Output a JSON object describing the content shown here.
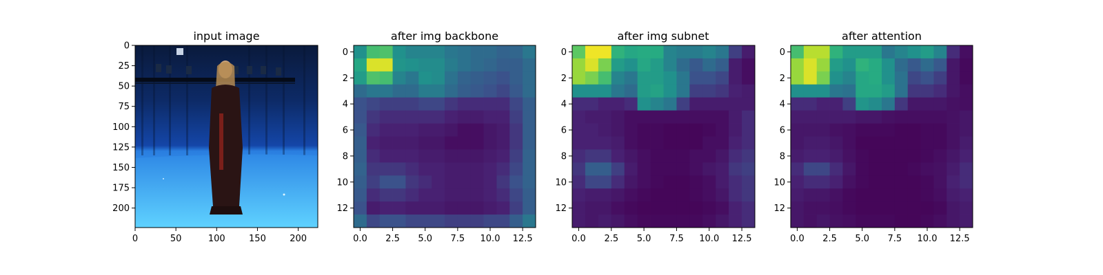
{
  "chart_data": [
    {
      "type": "image",
      "title": "input image",
      "xlim": [
        0,
        224
      ],
      "ylim": [
        224,
        0
      ],
      "xticks": [
        0,
        50,
        100,
        150,
        200
      ],
      "yticks": [
        0,
        25,
        50,
        75,
        100,
        125,
        150,
        175,
        200
      ],
      "xtick_labels": [
        "0",
        "50",
        "100",
        "150",
        "200"
      ],
      "ytick_labels": [
        "0",
        "25",
        "50",
        "75",
        "100",
        "125",
        "150",
        "175",
        "200"
      ]
    },
    {
      "type": "heatmap",
      "title": "after img backbone",
      "colormap": "viridis",
      "xlim": [
        -0.5,
        13.5
      ],
      "ylim": [
        13.5,
        -0.5
      ],
      "xticks": [
        0,
        2.5,
        5,
        7.5,
        10,
        12.5
      ],
      "yticks": [
        0,
        2,
        4,
        6,
        8,
        10,
        12
      ],
      "xtick_labels": [
        "0.0",
        "2.5",
        "5.0",
        "7.5",
        "10.0",
        "12.5"
      ],
      "ytick_labels": [
        "0",
        "2",
        "4",
        "6",
        "8",
        "10",
        "12"
      ],
      "values": [
        [
          0.5,
          0.7,
          0.72,
          0.5,
          0.45,
          0.45,
          0.45,
          0.4,
          0.38,
          0.35,
          0.35,
          0.32,
          0.33,
          0.4
        ],
        [
          0.6,
          0.95,
          0.95,
          0.52,
          0.5,
          0.48,
          0.48,
          0.42,
          0.38,
          0.35,
          0.33,
          0.3,
          0.3,
          0.35
        ],
        [
          0.55,
          0.72,
          0.7,
          0.45,
          0.4,
          0.5,
          0.48,
          0.38,
          0.32,
          0.3,
          0.28,
          0.25,
          0.3,
          0.35
        ],
        [
          0.35,
          0.4,
          0.4,
          0.35,
          0.35,
          0.42,
          0.42,
          0.35,
          0.3,
          0.28,
          0.25,
          0.22,
          0.28,
          0.35
        ],
        [
          0.25,
          0.22,
          0.2,
          0.2,
          0.2,
          0.22,
          0.22,
          0.18,
          0.15,
          0.15,
          0.15,
          0.15,
          0.22,
          0.3
        ],
        [
          0.25,
          0.18,
          0.15,
          0.15,
          0.15,
          0.15,
          0.15,
          0.12,
          0.1,
          0.1,
          0.12,
          0.12,
          0.2,
          0.3
        ],
        [
          0.28,
          0.15,
          0.12,
          0.12,
          0.12,
          0.1,
          0.1,
          0.08,
          0.05,
          0.05,
          0.08,
          0.1,
          0.18,
          0.3
        ],
        [
          0.3,
          0.12,
          0.1,
          0.1,
          0.1,
          0.08,
          0.08,
          0.05,
          0.05,
          0.05,
          0.08,
          0.1,
          0.18,
          0.3
        ],
        [
          0.3,
          0.15,
          0.12,
          0.12,
          0.12,
          0.1,
          0.1,
          0.08,
          0.08,
          0.08,
          0.1,
          0.12,
          0.2,
          0.32
        ],
        [
          0.32,
          0.18,
          0.18,
          0.18,
          0.15,
          0.12,
          0.12,
          0.1,
          0.1,
          0.1,
          0.12,
          0.15,
          0.22,
          0.32
        ],
        [
          0.3,
          0.2,
          0.25,
          0.25,
          0.18,
          0.15,
          0.12,
          0.1,
          0.1,
          0.1,
          0.12,
          0.18,
          0.25,
          0.32
        ],
        [
          0.28,
          0.15,
          0.18,
          0.18,
          0.15,
          0.12,
          0.12,
          0.1,
          0.1,
          0.1,
          0.12,
          0.15,
          0.22,
          0.3
        ],
        [
          0.25,
          0.1,
          0.12,
          0.12,
          0.1,
          0.1,
          0.1,
          0.08,
          0.08,
          0.08,
          0.1,
          0.12,
          0.2,
          0.3
        ],
        [
          0.35,
          0.22,
          0.25,
          0.25,
          0.22,
          0.22,
          0.22,
          0.2,
          0.2,
          0.2,
          0.22,
          0.22,
          0.3,
          0.4
        ]
      ]
    },
    {
      "type": "heatmap",
      "title": "after img subnet",
      "colormap": "viridis",
      "xlim": [
        -0.5,
        13.5
      ],
      "ylim": [
        13.5,
        -0.5
      ],
      "xticks": [
        0,
        2.5,
        5,
        7.5,
        10,
        12.5
      ],
      "yticks": [
        0,
        2,
        4,
        6,
        8,
        10,
        12
      ],
      "xtick_labels": [
        "0.0",
        "2.5",
        "5.0",
        "7.5",
        "10.0",
        "12.5"
      ],
      "ytick_labels": [
        "0",
        "2",
        "4",
        "6",
        "8",
        "10",
        "12"
      ],
      "values": [
        [
          0.75,
          0.98,
          0.98,
          0.65,
          0.6,
          0.62,
          0.62,
          0.45,
          0.42,
          0.42,
          0.45,
          0.4,
          0.2,
          0.1
        ],
        [
          0.85,
          0.95,
          0.8,
          0.55,
          0.5,
          0.6,
          0.55,
          0.45,
          0.35,
          0.28,
          0.35,
          0.3,
          0.1,
          0.05
        ],
        [
          0.85,
          0.8,
          0.7,
          0.45,
          0.4,
          0.55,
          0.55,
          0.5,
          0.4,
          0.25,
          0.25,
          0.22,
          0.1,
          0.05
        ],
        [
          0.5,
          0.5,
          0.5,
          0.4,
          0.35,
          0.55,
          0.58,
          0.5,
          0.4,
          0.2,
          0.2,
          0.18,
          0.12,
          0.1
        ],
        [
          0.15,
          0.15,
          0.12,
          0.12,
          0.15,
          0.5,
          0.45,
          0.4,
          0.2,
          0.1,
          0.1,
          0.1,
          0.1,
          0.1
        ],
        [
          0.12,
          0.1,
          0.1,
          0.08,
          0.05,
          0.05,
          0.05,
          0.05,
          0.05,
          0.05,
          0.05,
          0.05,
          0.1,
          0.15
        ],
        [
          0.12,
          0.12,
          0.1,
          0.08,
          0.05,
          0.03,
          0.03,
          0.02,
          0.02,
          0.02,
          0.03,
          0.05,
          0.1,
          0.15
        ],
        [
          0.12,
          0.12,
          0.12,
          0.1,
          0.05,
          0.03,
          0.03,
          0.02,
          0.02,
          0.02,
          0.05,
          0.05,
          0.12,
          0.15
        ],
        [
          0.15,
          0.18,
          0.18,
          0.12,
          0.08,
          0.05,
          0.03,
          0.03,
          0.03,
          0.05,
          0.05,
          0.08,
          0.15,
          0.18
        ],
        [
          0.18,
          0.3,
          0.3,
          0.2,
          0.1,
          0.05,
          0.03,
          0.03,
          0.03,
          0.05,
          0.08,
          0.1,
          0.18,
          0.2
        ],
        [
          0.15,
          0.22,
          0.22,
          0.15,
          0.08,
          0.05,
          0.03,
          0.02,
          0.02,
          0.03,
          0.05,
          0.1,
          0.15,
          0.18
        ],
        [
          0.12,
          0.1,
          0.1,
          0.08,
          0.05,
          0.03,
          0.02,
          0.02,
          0.02,
          0.03,
          0.05,
          0.08,
          0.15,
          0.18
        ],
        [
          0.1,
          0.08,
          0.08,
          0.05,
          0.03,
          0.02,
          0.02,
          0.02,
          0.02,
          0.02,
          0.03,
          0.05,
          0.12,
          0.15
        ],
        [
          0.1,
          0.08,
          0.1,
          0.08,
          0.05,
          0.03,
          0.03,
          0.03,
          0.03,
          0.03,
          0.05,
          0.08,
          0.12,
          0.15
        ]
      ]
    },
    {
      "type": "heatmap",
      "title": "after attention",
      "colormap": "viridis",
      "xlim": [
        -0.5,
        13.5
      ],
      "ylim": [
        13.5,
        -0.5
      ],
      "xticks": [
        0,
        2.5,
        5,
        7.5,
        10,
        12.5
      ],
      "yticks": [
        0,
        2,
        4,
        6,
        8,
        10,
        12
      ],
      "xtick_labels": [
        "0.0",
        "2.5",
        "5.0",
        "7.5",
        "10.0",
        "12.5"
      ],
      "ytick_labels": [
        "0",
        "2",
        "4",
        "6",
        "8",
        "10",
        "12"
      ],
      "values": [
        [
          0.7,
          0.9,
          0.9,
          0.65,
          0.55,
          0.55,
          0.55,
          0.4,
          0.45,
          0.5,
          0.55,
          0.45,
          0.15,
          0.05
        ],
        [
          0.85,
          0.95,
          0.85,
          0.55,
          0.5,
          0.65,
          0.62,
          0.5,
          0.35,
          0.28,
          0.35,
          0.28,
          0.08,
          0.03
        ],
        [
          0.85,
          0.95,
          0.8,
          0.5,
          0.45,
          0.6,
          0.62,
          0.5,
          0.38,
          0.22,
          0.25,
          0.2,
          0.08,
          0.03
        ],
        [
          0.5,
          0.5,
          0.5,
          0.4,
          0.38,
          0.6,
          0.6,
          0.55,
          0.38,
          0.18,
          0.18,
          0.15,
          0.08,
          0.05
        ],
        [
          0.15,
          0.15,
          0.12,
          0.12,
          0.2,
          0.52,
          0.48,
          0.4,
          0.18,
          0.08,
          0.08,
          0.08,
          0.06,
          0.05
        ],
        [
          0.1,
          0.1,
          0.1,
          0.1,
          0.1,
          0.08,
          0.08,
          0.06,
          0.05,
          0.05,
          0.05,
          0.05,
          0.06,
          0.08
        ],
        [
          0.08,
          0.08,
          0.08,
          0.06,
          0.05,
          0.03,
          0.03,
          0.03,
          0.02,
          0.02,
          0.03,
          0.03,
          0.06,
          0.08
        ],
        [
          0.08,
          0.1,
          0.1,
          0.08,
          0.05,
          0.02,
          0.02,
          0.02,
          0.02,
          0.02,
          0.03,
          0.03,
          0.06,
          0.1
        ],
        [
          0.1,
          0.12,
          0.12,
          0.1,
          0.06,
          0.03,
          0.02,
          0.02,
          0.02,
          0.02,
          0.03,
          0.05,
          0.08,
          0.12
        ],
        [
          0.15,
          0.22,
          0.22,
          0.15,
          0.08,
          0.03,
          0.02,
          0.02,
          0.02,
          0.03,
          0.05,
          0.06,
          0.1,
          0.15
        ],
        [
          0.12,
          0.15,
          0.15,
          0.12,
          0.06,
          0.03,
          0.02,
          0.02,
          0.02,
          0.02,
          0.03,
          0.06,
          0.12,
          0.15
        ],
        [
          0.1,
          0.08,
          0.08,
          0.06,
          0.03,
          0.02,
          0.02,
          0.02,
          0.02,
          0.02,
          0.03,
          0.05,
          0.1,
          0.12
        ],
        [
          0.08,
          0.06,
          0.06,
          0.05,
          0.03,
          0.02,
          0.02,
          0.02,
          0.02,
          0.02,
          0.02,
          0.03,
          0.08,
          0.1
        ],
        [
          0.08,
          0.06,
          0.08,
          0.06,
          0.05,
          0.03,
          0.03,
          0.03,
          0.02,
          0.02,
          0.03,
          0.05,
          0.08,
          0.1
        ]
      ]
    }
  ]
}
